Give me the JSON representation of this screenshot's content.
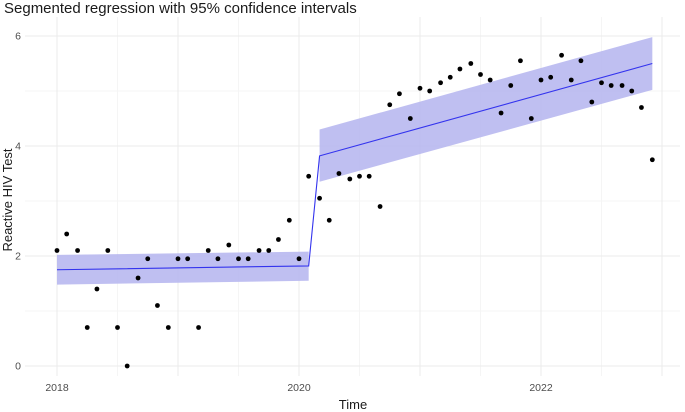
{
  "chart_data": {
    "type": "scatter",
    "title": "Segmented regression with 95% confidence intervals",
    "xlabel": "Time",
    "ylabel": "Reactive HIV Test",
    "xlim": [
      2017.75,
      2023.15
    ],
    "ylim": [
      -0.35,
      6.1
    ],
    "x_ticks": [
      2018,
      2020,
      2022
    ],
    "y_ticks": [
      0,
      2,
      4,
      6
    ],
    "grid": true,
    "colors": {
      "points": "#000000",
      "fit_line": "#3333ee",
      "ci_band": "#b4b4ee",
      "grid_major": "#ebebeb",
      "grid_minor": "#f5f5f5"
    },
    "series": [
      {
        "kind": "points",
        "x": [
          2018.0,
          2018.08,
          2018.17,
          2018.25,
          2018.33,
          2018.42,
          2018.5,
          2018.58,
          2018.67,
          2018.75,
          2018.83,
          2018.92,
          2019.0,
          2019.08,
          2019.17,
          2019.25,
          2019.33,
          2019.42,
          2019.5,
          2019.58,
          2019.67,
          2019.75,
          2019.83,
          2019.92,
          2020.0,
          2020.08,
          2020.17,
          2020.25,
          2020.33,
          2020.42,
          2020.5,
          2020.58,
          2020.67,
          2020.75,
          2020.83,
          2020.92,
          2021.0,
          2021.08,
          2021.17,
          2021.25,
          2021.33,
          2021.42,
          2021.5,
          2021.58,
          2021.67,
          2021.75,
          2021.83,
          2021.92,
          2022.0,
          2022.08,
          2022.17,
          2022.25,
          2022.33,
          2022.42,
          2022.5,
          2022.58,
          2022.67,
          2022.75,
          2022.83,
          2022.92
        ],
        "y": [
          2.1,
          2.4,
          2.1,
          0.7,
          1.4,
          2.1,
          0.7,
          0.0,
          1.6,
          1.95,
          1.1,
          0.7,
          1.95,
          1.95,
          0.7,
          2.1,
          1.95,
          2.2,
          1.95,
          1.95,
          2.1,
          2.1,
          2.3,
          2.65,
          1.95,
          3.45,
          3.05,
          2.65,
          3.5,
          3.4,
          3.45,
          3.45,
          2.9,
          4.75,
          4.95,
          4.5,
          5.05,
          5.0,
          5.15,
          5.25,
          5.4,
          5.5,
          5.3,
          5.2,
          4.6,
          5.1,
          5.55,
          4.5,
          5.2,
          5.25,
          5.65,
          5.2,
          5.55,
          4.8,
          5.15,
          5.1,
          5.1,
          5.0,
          4.7,
          3.75
        ]
      },
      {
        "kind": "fit",
        "segments": [
          {
            "x": [
              2018.0,
              2020.08
            ],
            "y": [
              1.75,
              1.82
            ],
            "lower": [
              1.48,
              1.55
            ],
            "upper": [
              2.02,
              2.08
            ]
          },
          {
            "x": [
              2020.17,
              2022.92
            ],
            "y": [
              3.82,
              5.5
            ],
            "lower": [
              3.35,
              5.02
            ],
            "upper": [
              4.3,
              5.98
            ]
          }
        ],
        "jump": {
          "x": [
            2020.08,
            2020.17
          ],
          "y": [
            1.82,
            3.82
          ]
        }
      }
    ]
  }
}
